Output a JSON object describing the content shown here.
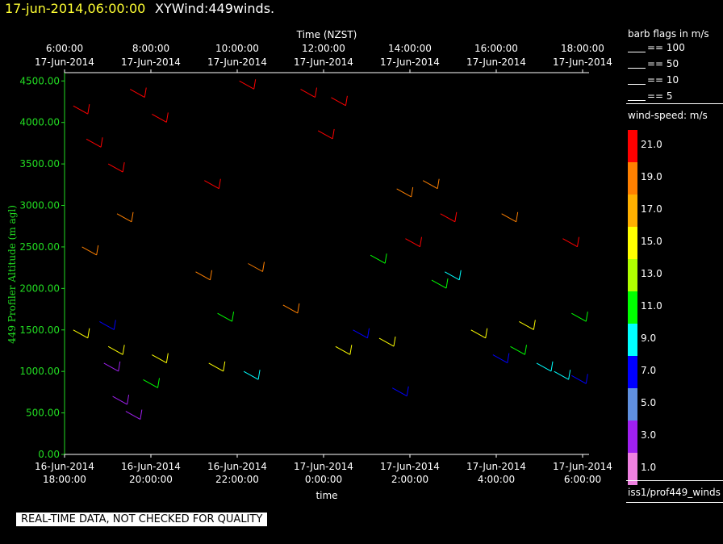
{
  "header": {
    "timestamp": "17-jun-2014,06:00:00",
    "title": "XYWind:449winds."
  },
  "legend": {
    "barb_title": "barb flags in m/s",
    "barb_items": [
      "== 100",
      "== 50",
      "== 10",
      "== 5"
    ],
    "speed_title": "wind-speed: m/s",
    "speed_levels": [
      {
        "label": "21.0",
        "color": "#ff0000"
      },
      {
        "label": "19.0",
        "color": "#ff8000"
      },
      {
        "label": "17.0",
        "color": "#ffb000"
      },
      {
        "label": "15.0",
        "color": "#ffff00"
      },
      {
        "label": "13.0",
        "color": "#b0ff00"
      },
      {
        "label": "11.0",
        "color": "#00ff00"
      },
      {
        "label": "9.0",
        "color": "#00ffff"
      },
      {
        "label": "7.0",
        "color": "#0000ff"
      },
      {
        "label": "5.0",
        "color": "#6090e0"
      },
      {
        "label": "3.0",
        "color": "#a020f0"
      },
      {
        "label": "1.0",
        "color": "#ee80e0"
      }
    ],
    "dataset": "iss1/prof449_winds"
  },
  "footer_note": "REAL-TIME DATA, NOT CHECKED FOR QUALITY",
  "chart_data": {
    "type": "scatter",
    "title": "",
    "ylabel": "449 Profiler Altitude (m agl)",
    "xlabel": "time",
    "top_axis_label": "Time (NZST)",
    "ylim": [
      0,
      4600
    ],
    "y_ticks": [
      "0.00",
      "500.00",
      "1000.00",
      "1500.00",
      "2000.00",
      "2500.00",
      "3000.00",
      "3500.00",
      "4000.00",
      "4500.00"
    ],
    "bottom_ticks": [
      [
        "16-Jun-2014",
        "18:00:00"
      ],
      [
        "16-Jun-2014",
        "20:00:00"
      ],
      [
        "16-Jun-2014",
        "22:00:00"
      ],
      [
        "17-Jun-2014",
        "0:00:00"
      ],
      [
        "17-Jun-2014",
        "2:00:00"
      ],
      [
        "17-Jun-2014",
        "4:00:00"
      ],
      [
        "17-Jun-2014",
        "6:00:00"
      ]
    ],
    "top_ticks": [
      [
        "6:00:00",
        "17-Jun-2014"
      ],
      [
        "8:00:00",
        "17-Jun-2014"
      ],
      [
        "10:00:00",
        "17-Jun-2014"
      ],
      [
        "12:00:00",
        "17-Jun-2014"
      ],
      [
        "14:00:00",
        "17-Jun-2014"
      ],
      [
        "16:00:00",
        "17-Jun-2014"
      ],
      [
        "18:00:00",
        "17-Jun-2014"
      ]
    ],
    "x_hours_start": 0,
    "x_hours_end": 12,
    "series": [
      {
        "color": "#ff0000",
        "points": [
          [
            0.2,
            4200
          ],
          [
            0.5,
            3800
          ],
          [
            1.0,
            3500
          ],
          [
            1.5,
            4400
          ],
          [
            2.0,
            4100
          ],
          [
            3.2,
            3300
          ],
          [
            4.0,
            4500
          ],
          [
            5.4,
            4400
          ],
          [
            5.8,
            3900
          ],
          [
            6.1,
            4300
          ],
          [
            7.8,
            2600
          ],
          [
            8.6,
            2900
          ],
          [
            11.4,
            2600
          ]
        ]
      },
      {
        "color": "#ff8000",
        "points": [
          [
            0.4,
            2500
          ],
          [
            1.2,
            2900
          ],
          [
            3.0,
            2200
          ],
          [
            4.2,
            2300
          ],
          [
            5.0,
            1800
          ],
          [
            7.6,
            3200
          ],
          [
            8.2,
            3300
          ],
          [
            10.0,
            2900
          ]
        ]
      },
      {
        "color": "#ffff00",
        "points": [
          [
            0.2,
            1500
          ],
          [
            1.0,
            1300
          ],
          [
            2.0,
            1200
          ],
          [
            3.3,
            1100
          ],
          [
            6.2,
            1300
          ],
          [
            7.2,
            1400
          ],
          [
            9.3,
            1500
          ],
          [
            10.4,
            1600
          ]
        ]
      },
      {
        "color": "#00ff00",
        "points": [
          [
            1.8,
            900
          ],
          [
            3.5,
            1700
          ],
          [
            7.0,
            2400
          ],
          [
            8.4,
            2100
          ],
          [
            10.2,
            1300
          ],
          [
            11.6,
            1700
          ]
        ]
      },
      {
        "color": "#00ffff",
        "points": [
          [
            4.1,
            1000
          ],
          [
            8.7,
            2200
          ],
          [
            10.8,
            1100
          ],
          [
            11.2,
            1000
          ]
        ]
      },
      {
        "color": "#0000ff",
        "points": [
          [
            0.8,
            1600
          ],
          [
            6.6,
            1500
          ],
          [
            7.5,
            800
          ],
          [
            9.8,
            1200
          ],
          [
            11.6,
            950
          ]
        ]
      },
      {
        "color": "#a020f0",
        "points": [
          [
            0.9,
            1100
          ],
          [
            1.1,
            700
          ],
          [
            1.4,
            520
          ]
        ]
      }
    ]
  }
}
